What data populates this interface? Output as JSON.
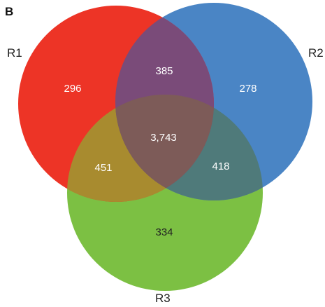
{
  "panel_label": "B",
  "sets": [
    {
      "name": "R1",
      "color": "#ed3426"
    },
    {
      "name": "R2",
      "color": "#4a85c5"
    },
    {
      "name": "R3",
      "color": "#7cc043"
    }
  ],
  "regions": {
    "r1_only": "296",
    "r2_only": "278",
    "r3_only": "334",
    "r1_r2": "385",
    "r1_r3": "451",
    "r2_r3": "418",
    "r1_r2_r3": "3,743"
  },
  "region_colors": {
    "r1_r2": "#7a4b79",
    "r1_r3": "#a88b2f",
    "r2_r3": "#4f7a7a",
    "r1_r2_r3": "#7d5b58"
  }
}
